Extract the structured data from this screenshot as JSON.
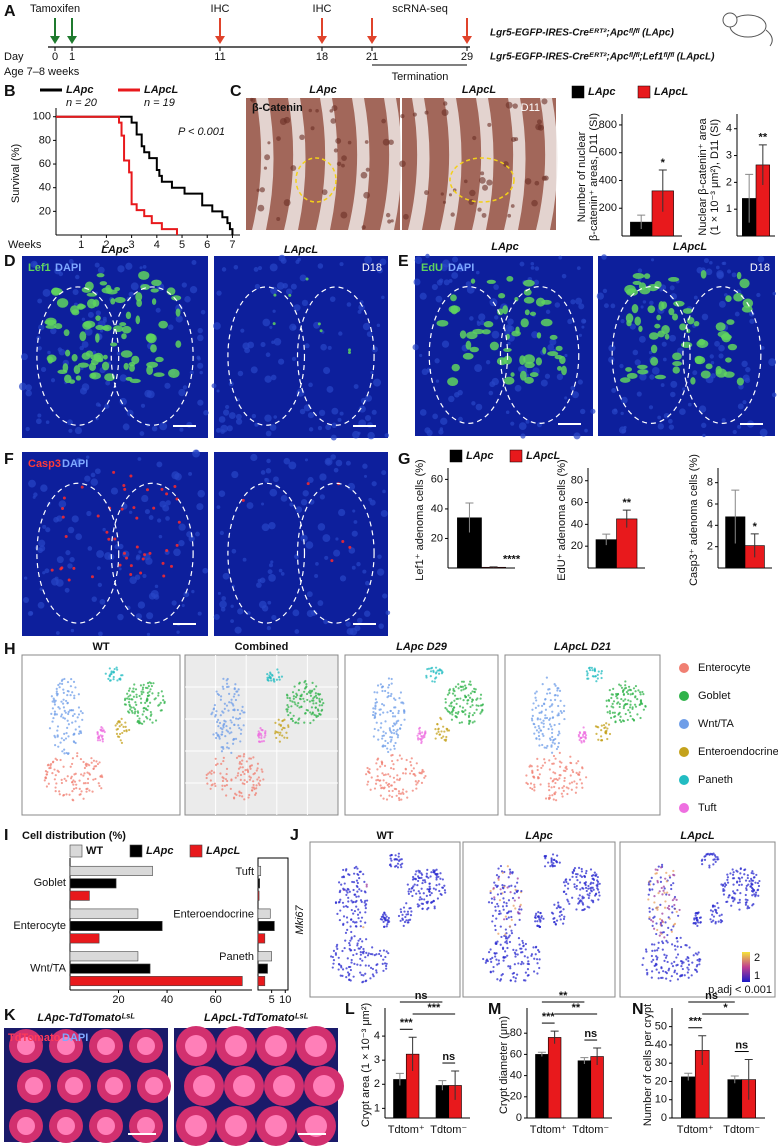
{
  "panel_letters": [
    "A",
    "B",
    "C",
    "D",
    "E",
    "F",
    "G",
    "H",
    "I",
    "J",
    "K",
    "L",
    "M",
    "N"
  ],
  "timeline": {
    "drug": "Tamoxifen",
    "day_label": "Day",
    "days": [
      "0",
      "1",
      "11",
      "18",
      "21",
      "29"
    ],
    "events": [
      "IHC",
      "IHC",
      "scRNA-seq"
    ],
    "age": "Age 7–8 weeks",
    "end": "Termination",
    "genotypes": [
      "Lgr5-EGFP-IRES-Creᴱᴿᵀ²;Apcᶠˡ/ᶠˡ (LApc)",
      "Lgr5-EGFP-IRES-Creᴱᴿᵀ²;Apcᶠˡ/ᶠˡ;Lef1ᶠˡ/ᶠˡ (LApcL)"
    ]
  },
  "images": {
    "C": {
      "titles": [
        "LApc",
        "LApcL"
      ],
      "stain": [
        "β-Catenin"
      ],
      "day": "D11"
    },
    "D": {
      "titles": [
        "LApc",
        "LApcL"
      ],
      "stain": [
        "Lef1",
        "DAPI"
      ],
      "day": "D18"
    },
    "E": {
      "titles": [
        "LApc",
        "LApcL"
      ],
      "stain": [
        "EdU",
        "DAPI"
      ],
      "day": "D18"
    },
    "F": {
      "stain": [
        "Casp3",
        "DAPI"
      ]
    },
    "K": {
      "titles": [
        "LApc-TdTomatoᴸˢᴸ",
        "LApcL-TdTomatoᴸˢᴸ"
      ],
      "stain": [
        "TdTomato",
        "DAPI"
      ]
    }
  },
  "umap_H": {
    "titles": [
      "WT",
      "Combined",
      "LApc D29",
      "LApcL D21"
    ],
    "legend": [
      {
        "name": "Enterocyte",
        "color": "#f07f72"
      },
      {
        "name": "Goblet",
        "color": "#2fb34a"
      },
      {
        "name": "Wnt/TA",
        "color": "#6f9ee8"
      },
      {
        "name": "Enteroendocrine",
        "color": "#c4a21c"
      },
      {
        "name": "Paneth",
        "color": "#22bcc2"
      },
      {
        "name": "Tuft",
        "color": "#ee6fe0"
      }
    ]
  },
  "umap_J": {
    "titles": [
      "WT",
      "LApc",
      "LApcL"
    ],
    "gene": "Mki67",
    "colorbar": [
      "2",
      "1"
    ],
    "note": "p.adj < 0.001"
  },
  "chart_data": [
    {
      "type": "line",
      "series": [
        {
          "name": "LApc",
          "color": "#000000",
          "x": [
            0,
            3.0,
            3.0,
            3.2,
            3.2,
            3.4,
            3.4,
            3.5,
            3.5,
            3.7,
            3.7,
            4.0,
            4.0,
            4.1,
            4.1,
            4.2,
            4.2,
            4.6,
            4.6,
            5.1,
            5.1,
            5.8,
            5.8,
            6.2,
            6.2,
            6.6,
            6.6,
            6.8,
            6.8,
            6.9,
            6.9,
            7.0,
            7.0
          ],
          "values": [
            100,
            100,
            95,
            95,
            85,
            85,
            75,
            75,
            70,
            70,
            65,
            65,
            55,
            55,
            50,
            50,
            45,
            45,
            40,
            40,
            35,
            35,
            25,
            25,
            20,
            20,
            15,
            15,
            10,
            10,
            5,
            5,
            0
          ]
        },
        {
          "name": "LApcL",
          "color": "#e8191c",
          "x": [
            0,
            2.5,
            2.5,
            2.6,
            2.6,
            2.7,
            2.7,
            2.9,
            2.9,
            3.0,
            3.0,
            3.2,
            3.2,
            3.5,
            3.5,
            3.8,
            3.8,
            4.2,
            4.2,
            4.8,
            4.8
          ],
          "values": [
            100,
            100,
            95,
            95,
            84,
            84,
            63,
            63,
            53,
            53,
            26,
            26,
            21,
            21,
            16,
            16,
            10,
            10,
            5,
            5,
            0
          ]
        }
      ],
      "annotations": [
        "n = 20",
        "n = 19",
        "P < 0.001"
      ],
      "xlabel": "Weeks",
      "ylabel": [
        "Survival (%)"
      ],
      "xlim": [
        0,
        7.3
      ],
      "xticks": [
        1,
        2,
        3,
        4,
        5,
        6,
        7
      ],
      "ylim": [
        0,
        104
      ],
      "yticks": [
        20,
        40,
        60,
        80,
        100
      ]
    },
    {
      "type": "bar",
      "series": [
        {
          "name": "LApc",
          "color": "#000000",
          "values": [
            100
          ],
          "errors": [
            50
          ]
        },
        {
          "name": "LApcL",
          "color": "#e8191c",
          "values": [
            325
          ],
          "errors": [
            150
          ]
        }
      ],
      "ylabel": [
        "Number of nuclear",
        "β-catenin⁺ areas, D11 (SI)"
      ],
      "ylim": [
        0,
        850
      ],
      "yticks": [
        200,
        400,
        600,
        800
      ],
      "annotation": "*"
    },
    {
      "type": "bar",
      "series": [
        {
          "color": "#000000",
          "values": [
            1.4
          ],
          "errors": [
            0.9
          ]
        },
        {
          "color": "#e8191c",
          "values": [
            2.65
          ],
          "errors": [
            0.75
          ]
        }
      ],
      "ylabel": [
        "Nuclear β-catenin⁺ area",
        "(1 × 10⁻³ μm²), D11 (SI)"
      ],
      "ylim": [
        0,
        4.4
      ],
      "yticks": [
        1,
        2,
        3,
        4
      ],
      "annotation": "**"
    },
    {
      "type": "bar",
      "series": [
        {
          "name": "LApc",
          "color": "#000000",
          "values": [
            34
          ],
          "errors": [
            10
          ]
        },
        {
          "name": "LApcL",
          "color": "#e8191c",
          "values": [
            0.5
          ],
          "errors": [
            0.3
          ]
        }
      ],
      "ylabel": [
        "Lef1⁺ adenoma cells (%)"
      ],
      "ylim": [
        0,
        65
      ],
      "yticks": [
        20,
        40,
        60
      ],
      "annotation": "****"
    },
    {
      "type": "bar",
      "series": [
        {
          "color": "#000000",
          "values": [
            26
          ],
          "errors": [
            5
          ]
        },
        {
          "color": "#e8191c",
          "values": [
            45
          ],
          "errors": [
            8
          ]
        }
      ],
      "ylabel": [
        "EdU⁺ adenoma cells (%)"
      ],
      "ylim": [
        0,
        88
      ],
      "yticks": [
        20,
        40,
        60,
        80
      ],
      "annotation": "**"
    },
    {
      "type": "bar",
      "series": [
        {
          "color": "#000000",
          "values": [
            4.8
          ],
          "errors": [
            2.5
          ]
        },
        {
          "color": "#e8191c",
          "values": [
            2.1
          ],
          "errors": [
            1.1
          ]
        }
      ],
      "ylabel": [
        "Casp3⁺ adenoma cells (%)"
      ],
      "ylim": [
        0,
        9
      ],
      "yticks": [
        2,
        4,
        6,
        8
      ],
      "annotation": "*"
    },
    {
      "type": "hbar",
      "title": "Cell distribution (%)",
      "categories": [
        "Goblet",
        "Enterocyte",
        "Wnt/TA"
      ],
      "series": [
        {
          "name": "WT",
          "color": "#d9d9d9",
          "values": [
            34,
            28,
            28
          ]
        },
        {
          "name": "LApc",
          "color": "#000000",
          "values": [
            19,
            38,
            33
          ]
        },
        {
          "name": "LApcL",
          "color": "#e8191c",
          "values": [
            8,
            12,
            71
          ]
        }
      ],
      "xlim": [
        0,
        75
      ],
      "xticks": [
        20,
        40,
        60
      ]
    },
    {
      "type": "hbar",
      "categories": [
        "Tuft",
        "Enteroendocrine",
        "Paneth"
      ],
      "series": [
        {
          "color": "#d9d9d9",
          "values": [
            1,
            4.5,
            5
          ]
        },
        {
          "color": "#000000",
          "values": [
            0.6,
            6,
            3.5
          ]
        },
        {
          "color": "#e8191c",
          "values": [
            0.4,
            2.5,
            2.5
          ]
        }
      ],
      "xlim": [
        0,
        11
      ],
      "xticks": [
        5,
        10
      ]
    },
    {
      "type": "bar",
      "categories": [
        "Tdtom⁺",
        "Tdtom⁻"
      ],
      "series": [
        {
          "color": "#000000",
          "values": [
            2.2,
            1.95
          ],
          "errors": [
            0.25,
            0.2
          ]
        },
        {
          "color": "#e8191c",
          "values": [
            3.25,
            1.95
          ],
          "errors": [
            0.7,
            0.6
          ]
        }
      ],
      "ylabel": [
        "Crypt area (1 × 10⁻³ μm²)"
      ],
      "ylim": [
        0.6,
        5
      ],
      "yticks": [
        1,
        2,
        3,
        4
      ],
      "brackets": [
        "ns",
        "***",
        "***",
        "ns"
      ]
    },
    {
      "type": "bar",
      "categories": [
        "Tdtom⁺",
        "Tdtom⁻"
      ],
      "series": [
        {
          "color": "#000000",
          "values": [
            60,
            54
          ],
          "errors": [
            2,
            3
          ]
        },
        {
          "color": "#e8191c",
          "values": [
            76,
            58
          ],
          "errors": [
            6,
            8
          ]
        }
      ],
      "ylabel": [
        "Crypt diameter (μm)"
      ],
      "ylim": [
        0,
        100
      ],
      "yticks": [
        0,
        20,
        40,
        60,
        80
      ],
      "brackets": [
        "**",
        "**",
        "***",
        "ns"
      ]
    },
    {
      "type": "bar",
      "categories": [
        "Tdtom⁺",
        "Tdtom⁻"
      ],
      "series": [
        {
          "color": "#000000",
          "values": [
            22.5,
            21
          ],
          "errors": [
            2,
            2
          ]
        },
        {
          "color": "#e8191c",
          "values": [
            37,
            21
          ],
          "errors": [
            8,
            11
          ]
        }
      ],
      "ylabel": [
        "Number of cells per crypt"
      ],
      "ylim": [
        0,
        58
      ],
      "yticks": [
        0,
        10,
        20,
        30,
        40,
        50
      ],
      "brackets": [
        "ns",
        "*",
        "***",
        "ns"
      ]
    }
  ]
}
